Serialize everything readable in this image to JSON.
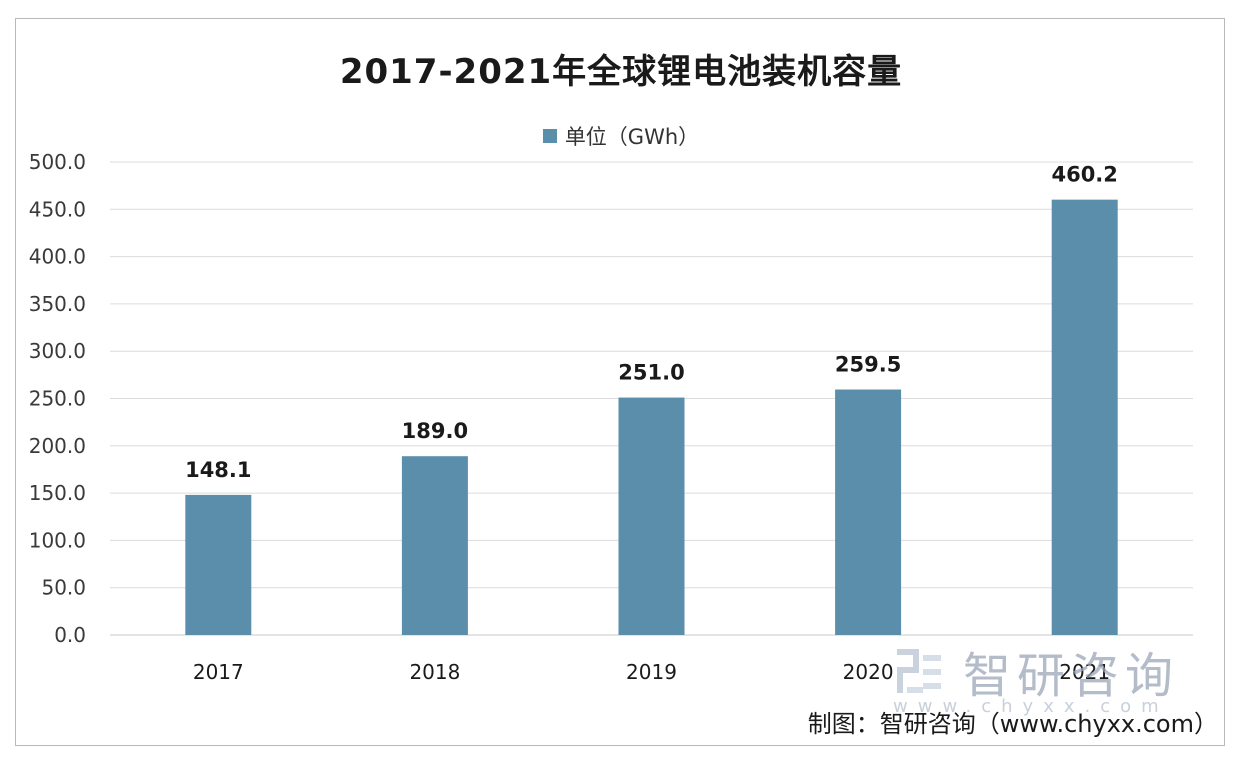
{
  "chart_data": {
    "type": "bar",
    "title": "2017-2021年全球锂电池装机容量",
    "legend": "单位（GWh）",
    "legend_position": "top-center",
    "categories": [
      "2017",
      "2018",
      "2019",
      "2020",
      "2021"
    ],
    "series": [
      {
        "name": "单位（GWh）",
        "values": [
          148.1,
          189.0,
          251.0,
          259.5,
          460.2
        ]
      }
    ],
    "data_labels": [
      "148.1",
      "189.0",
      "251.0",
      "259.5",
      "460.2"
    ],
    "yticks": [
      "0.0",
      "50.0",
      "100.0",
      "150.0",
      "200.0",
      "250.0",
      "300.0",
      "350.0",
      "400.0",
      "450.0",
      "500.0"
    ],
    "ylim": [
      0,
      500
    ],
    "grid": true,
    "bar_color": "#5a8eab"
  },
  "source": "制图：智研咨询（www.chyxx.com）",
  "watermark": {
    "text": "智研咨询",
    "sub": "www.chyxx.com"
  }
}
